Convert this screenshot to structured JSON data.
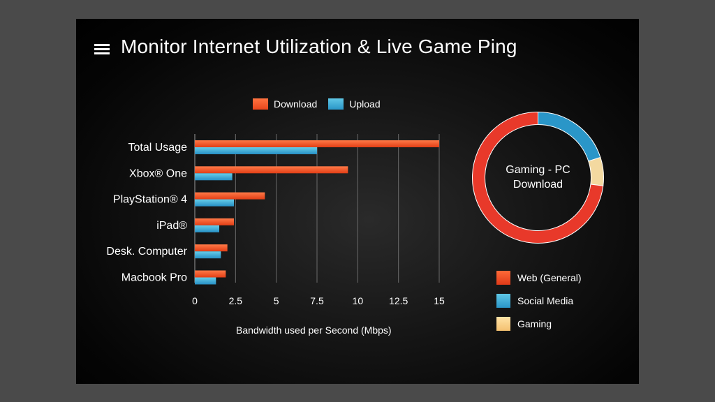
{
  "header": {
    "title": "Monitor Internet Utilization & Live Game Ping"
  },
  "legend": {
    "download": "Download",
    "upload": "Upload"
  },
  "colors": {
    "download": "#e8461c",
    "upload": "#2a96c8",
    "web": "#e8392a",
    "social": "#2a96c8",
    "gaming": "#f3d9a0",
    "grid": "#6a6a6a"
  },
  "x_axis_label": "Bandwidth used per Second (Mbps)",
  "donut": {
    "center_line1": "Gaming - PC",
    "center_line2": "Download",
    "legend": [
      "Web (General)",
      "Social Media",
      "Gaming"
    ]
  },
  "chart_data": [
    {
      "type": "bar",
      "orientation": "horizontal",
      "categories": [
        "Total Usage",
        "Xbox® One",
        "PlayStation® 4",
        "iPad®",
        "Desk. Computer",
        "Macbook Pro"
      ],
      "series": [
        {
          "name": "Download",
          "values": [
            15,
            9.4,
            4.3,
            2.4,
            2.0,
            1.9
          ]
        },
        {
          "name": "Upload",
          "values": [
            7.5,
            2.3,
            2.4,
            1.5,
            1.6,
            1.3
          ]
        }
      ],
      "xticks": [
        "0",
        "2.5",
        "5",
        "7.5",
        "10",
        "12.5",
        "15"
      ],
      "xlim": [
        0,
        15
      ],
      "xlabel": "Bandwidth used per Second (Mbps)",
      "grid": true,
      "legend_position": "top"
    },
    {
      "type": "pie",
      "donut": true,
      "labels": [
        "Social Media",
        "Gaming",
        "Web (General)"
      ],
      "values": [
        20,
        7,
        73
      ]
    }
  ]
}
